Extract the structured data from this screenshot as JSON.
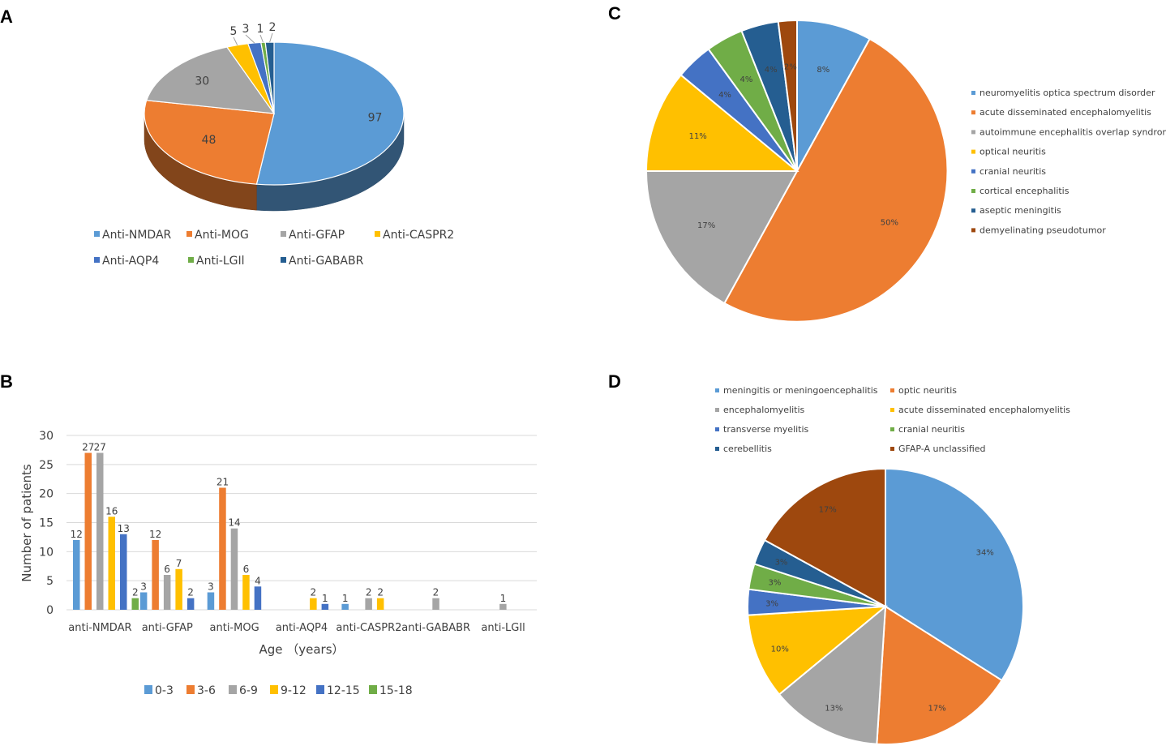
{
  "panels": {
    "a": "A",
    "b": "B",
    "c": "C",
    "d": "D"
  },
  "chart_data": [
    {
      "panel": "A",
      "type": "pie",
      "style": "3d",
      "title": "",
      "legend_position": "bottom",
      "categories": [
        "Anti-NMDAR",
        "Anti-MOG",
        "Anti-GFAP",
        "Anti-CASPR2",
        "Anti-AQP4",
        "Anti-LGIl",
        "Anti-GABABR"
      ],
      "values": [
        97,
        48,
        30,
        5,
        3,
        1,
        2
      ],
      "value_labels": [
        "97",
        "48",
        "30",
        "5",
        "3",
        "1",
        "2"
      ],
      "colors": [
        "#5B9BD5",
        "#ED7D31",
        "#A5A5A5",
        "#FFC000",
        "#4472C4",
        "#70AD47",
        "#255E91"
      ]
    },
    {
      "panel": "B",
      "type": "bar",
      "title": "",
      "xlabel": "Age （years）",
      "ylabel": "Number of patients",
      "ylim": [
        0,
        30
      ],
      "yticks": [
        "0",
        "5",
        "10",
        "15",
        "20",
        "25",
        "30"
      ],
      "legend_position": "bottom",
      "grid": true,
      "categories": [
        "anti-NMDAR",
        "anti-GFAP",
        "anti-MOG",
        "anti-AQP4",
        "anti-CASPR2",
        "anti-GABABR",
        "anti-LGIl"
      ],
      "series": [
        {
          "name": "0-3",
          "color": "#5B9BD5",
          "values": [
            12,
            3,
            3,
            0,
            1,
            0,
            0
          ]
        },
        {
          "name": "3-6",
          "color": "#ED7D31",
          "values": [
            27,
            12,
            21,
            0,
            0,
            0,
            0
          ]
        },
        {
          "name": "6-9",
          "color": "#A5A5A5",
          "values": [
            27,
            6,
            14,
            0,
            2,
            2,
            1
          ]
        },
        {
          "name": "9-12",
          "color": "#FFC000",
          "values": [
            16,
            7,
            6,
            2,
            2,
            0,
            0
          ]
        },
        {
          "name": "12-15",
          "color": "#4472C4",
          "values": [
            13,
            2,
            4,
            1,
            0,
            0,
            0
          ]
        },
        {
          "name": "15-18",
          "color": "#70AD47",
          "values": [
            2,
            0,
            0,
            0,
            0,
            0,
            0
          ]
        }
      ]
    },
    {
      "panel": "C",
      "type": "pie",
      "title": "",
      "legend_position": "right",
      "categories": [
        "neuromyelitis optica spectrum disorder",
        "acute disseminated encephalomyelitis",
        "autoimmune encephalitis overlap syndrome",
        "optical neuritis",
        "cranial neuritis",
        "cortical encephalitis",
        " aseptic meningitis",
        "demyelinating pseudotumor"
      ],
      "values": [
        8,
        50,
        17,
        11,
        4,
        4,
        4,
        2
      ],
      "value_labels": [
        "8%",
        "50%",
        "17%",
        "11%",
        "4%",
        "4%",
        "4%",
        "2%"
      ],
      "colors": [
        "#5B9BD5",
        "#ED7D31",
        "#A5A5A5",
        "#FFC000",
        "#4472C4",
        "#70AD47",
        "#255E91",
        "#9E480E"
      ]
    },
    {
      "panel": "D",
      "type": "pie",
      "title": "",
      "legend_position": "top",
      "categories": [
        "meningitis or meningoencephalitis",
        "optic neuritis",
        "encephalomyelitis",
        " acute disseminated encephalomyelitis",
        "transverse myelitis",
        "cranial neuritis",
        "cerebellitis",
        "GFAP-A unclassified"
      ],
      "values": [
        34,
        17,
        13,
        10,
        3,
        3,
        3,
        17
      ],
      "value_labels": [
        "34%",
        "17%",
        "13%",
        "10%",
        "3%",
        "3%",
        "3%",
        "17%"
      ],
      "colors": [
        "#5B9BD5",
        "#ED7D31",
        "#A5A5A5",
        "#FFC000",
        "#4472C4",
        "#70AD47",
        "#255E91",
        "#9E480E"
      ]
    }
  ]
}
